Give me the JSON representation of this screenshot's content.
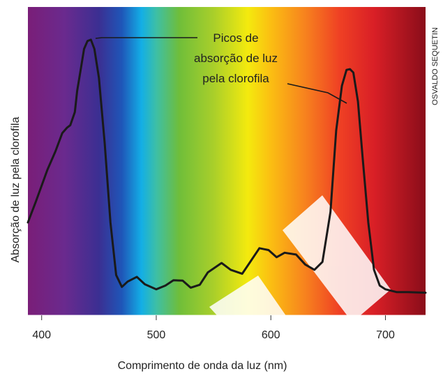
{
  "chart_data": {
    "type": "line",
    "title": "",
    "xlabel": "Comprimento de onda da luz (nm)",
    "ylabel": "Absorção de luz pela clorofila",
    "xlim": [
      388,
      735
    ],
    "ylim": [
      0,
      100
    ],
    "x_ticks": [
      400,
      500,
      600,
      700
    ],
    "x_tick_labels": [
      "400",
      "500",
      "600",
      "700"
    ],
    "y_ticks_shown": false,
    "grid": false,
    "legend": "none",
    "background": "visible light spectrum (violet to red) behind the plot",
    "spectrum_stops": [
      {
        "nm": 388,
        "color": "#7a1e78"
      },
      {
        "nm": 420,
        "color": "#6a2a8e"
      },
      {
        "nm": 450,
        "color": "#3b2f92"
      },
      {
        "nm": 470,
        "color": "#1f56b8"
      },
      {
        "nm": 487,
        "color": "#13aee6"
      },
      {
        "nm": 500,
        "color": "#3dbfa6"
      },
      {
        "nm": 520,
        "color": "#6fbe3a"
      },
      {
        "nm": 550,
        "color": "#a9cf2a"
      },
      {
        "nm": 580,
        "color": "#f4ea0e"
      },
      {
        "nm": 600,
        "color": "#fbbe12"
      },
      {
        "nm": 630,
        "color": "#f7821e"
      },
      {
        "nm": 660,
        "color": "#ef4024"
      },
      {
        "nm": 690,
        "color": "#d91f26"
      },
      {
        "nm": 735,
        "color": "#8a0d1a"
      }
    ],
    "series": [
      {
        "color": "#1a1a1a",
        "x": [
          388,
          395,
          405,
          412,
          418,
          422,
          425,
          429,
          431,
          434,
          437,
          440,
          443,
          446,
          450,
          455,
          460,
          465,
          470,
          475,
          483,
          490,
          500,
          508,
          515,
          523,
          530,
          538,
          545,
          557,
          565,
          575,
          582,
          590,
          598,
          605,
          612,
          622,
          630,
          638,
          645,
          652,
          657,
          662,
          666,
          669,
          672,
          676,
          680,
          685,
          690,
          695,
          700,
          710,
          720,
          735
        ],
        "y": [
          30,
          38,
          50,
          57,
          64,
          66,
          67,
          72,
          80,
          88,
          96,
          99,
          99.5,
          96,
          85,
          60,
          30,
          10,
          5.5,
          7.5,
          9.3,
          6.5,
          4.6,
          6,
          8,
          7.9,
          5.2,
          6.3,
          11,
          14.6,
          12,
          10.5,
          15,
          20.2,
          19.5,
          16.8,
          18.5,
          17.8,
          14,
          12,
          15,
          34,
          65,
          82,
          88,
          88.3,
          87,
          76,
          55,
          30,
          12,
          6,
          4.6,
          3.5,
          3.5,
          3.3
        ]
      }
    ],
    "annotations": [
      {
        "lines": [
          "Picos de",
          "absorção de luz",
          "pela clorofila"
        ],
        "points_to_x": [
          443,
          669
        ]
      }
    ],
    "credit": "OSVALDO SEQUETIN"
  }
}
